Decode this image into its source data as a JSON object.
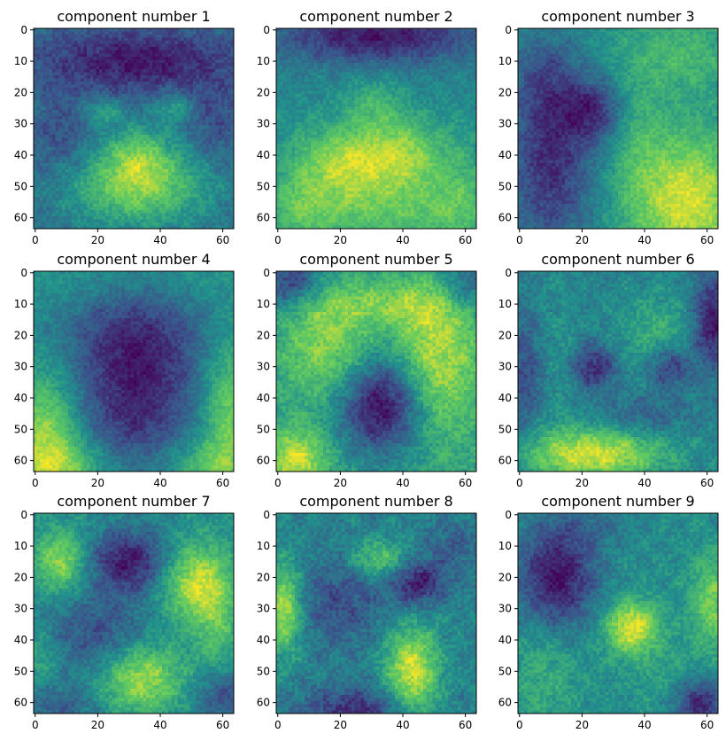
{
  "chart_data": {
    "type": "heatmap",
    "colormap": "viridis",
    "colormap_stops": [
      "#440154",
      "#3b528b",
      "#21918c",
      "#5ec962",
      "#fde725"
    ],
    "grid_layout": {
      "rows": 3,
      "cols": 3
    },
    "image_size": [
      64,
      64
    ],
    "x_ticks": [
      "0",
      "20",
      "40",
      "60"
    ],
    "y_ticks": [
      "0",
      "10",
      "20",
      "30",
      "40",
      "50",
      "60"
    ],
    "xlim": [
      -0.5,
      63.5
    ],
    "ylim": [
      63.5,
      -0.5
    ],
    "panels": [
      {
        "title": "component number 1",
        "blobs": [
          [
            33,
            50,
            16,
            9,
            1.0
          ],
          [
            33,
            40,
            7,
            7,
            0.6
          ],
          [
            22,
            26,
            4,
            3,
            0.5
          ],
          [
            44,
            25,
            4,
            3,
            0.5
          ],
          [
            33,
            10,
            22,
            7,
            -0.7
          ],
          [
            8,
            35,
            6,
            9,
            -0.3
          ],
          [
            58,
            30,
            5,
            9,
            -0.3
          ]
        ]
      },
      {
        "title": "component number 2",
        "blobs": [
          [
            22,
            42,
            9,
            8,
            1.0
          ],
          [
            40,
            40,
            9,
            8,
            1.0
          ],
          [
            32,
            58,
            28,
            8,
            0.7
          ],
          [
            31,
            24,
            7,
            6,
            0.5
          ],
          [
            8,
            50,
            7,
            14,
            0.4
          ],
          [
            58,
            50,
            7,
            14,
            0.4
          ],
          [
            32,
            2,
            22,
            6,
            -1.0
          ]
        ]
      },
      {
        "title": "component number 3",
        "blobs": [
          [
            54,
            54,
            12,
            14,
            1.1
          ],
          [
            52,
            8,
            10,
            8,
            0.4
          ],
          [
            38,
            35,
            6,
            18,
            0.3
          ],
          [
            10,
            42,
            10,
            22,
            -1.0
          ],
          [
            24,
            26,
            7,
            7,
            -0.8
          ],
          [
            8,
            14,
            8,
            10,
            -0.4
          ]
        ]
      },
      {
        "title": "component number 4",
        "blobs": [
          [
            3,
            50,
            8,
            14,
            1.0
          ],
          [
            62,
            44,
            6,
            16,
            0.9
          ],
          [
            8,
            62,
            10,
            6,
            0.7
          ],
          [
            56,
            62,
            10,
            6,
            0.6
          ],
          [
            32,
            3,
            24,
            6,
            0.3
          ],
          [
            32,
            28,
            15,
            18,
            -1.1
          ],
          [
            32,
            50,
            10,
            8,
            -0.3
          ]
        ]
      },
      {
        "title": "component number 5",
        "blobs": [
          [
            50,
            28,
            10,
            18,
            0.8
          ],
          [
            16,
            24,
            10,
            12,
            0.6
          ],
          [
            32,
            10,
            18,
            5,
            0.4
          ],
          [
            6,
            60,
            7,
            7,
            0.8
          ],
          [
            34,
            42,
            10,
            11,
            -1.2
          ],
          [
            4,
            3,
            7,
            6,
            -0.8
          ],
          [
            60,
            3,
            6,
            6,
            -0.6
          ]
        ]
      },
      {
        "title": "component number 6",
        "blobs": [
          [
            24,
            58,
            16,
            6,
            1.1
          ],
          [
            45,
            20,
            10,
            10,
            0.4
          ],
          [
            10,
            30,
            6,
            20,
            0.2
          ],
          [
            62,
            16,
            5,
            10,
            -0.9
          ],
          [
            2,
            32,
            5,
            14,
            -0.5
          ],
          [
            24,
            30,
            5,
            5,
            -0.7
          ],
          [
            48,
            30,
            5,
            5,
            -0.7
          ],
          [
            40,
            46,
            10,
            5,
            -0.3
          ]
        ]
      },
      {
        "title": "component number 7",
        "blobs": [
          [
            52,
            22,
            8,
            9,
            1.0
          ],
          [
            8,
            15,
            6,
            7,
            0.8
          ],
          [
            34,
            52,
            9,
            8,
            0.9
          ],
          [
            58,
            38,
            5,
            9,
            0.4
          ],
          [
            30,
            15,
            9,
            7,
            -0.9
          ],
          [
            20,
            38,
            12,
            9,
            -0.5
          ],
          [
            60,
            58,
            6,
            6,
            -0.5
          ],
          [
            8,
            62,
            8,
            5,
            -0.4
          ],
          [
            2,
            45,
            4,
            6,
            0.3
          ]
        ]
      },
      {
        "title": "component number 8",
        "blobs": [
          [
            43,
            50,
            6,
            10,
            1.0
          ],
          [
            2,
            30,
            4,
            10,
            0.9
          ],
          [
            32,
            14,
            6,
            4,
            0.6
          ],
          [
            20,
            28,
            10,
            10,
            -0.4
          ],
          [
            45,
            22,
            6,
            5,
            -0.7
          ],
          [
            25,
            62,
            12,
            5,
            -0.6
          ],
          [
            56,
            10,
            6,
            6,
            -0.3
          ]
        ]
      },
      {
        "title": "component number 9",
        "blobs": [
          [
            36,
            36,
            6,
            6,
            1.1
          ],
          [
            62,
            28,
            5,
            10,
            0.7
          ],
          [
            8,
            50,
            8,
            14,
            0.3
          ],
          [
            50,
            52,
            10,
            8,
            0.2
          ],
          [
            12,
            20,
            9,
            12,
            -1.0
          ],
          [
            58,
            60,
            6,
            6,
            -0.9
          ],
          [
            25,
            4,
            10,
            4,
            -0.2
          ]
        ]
      }
    ]
  }
}
